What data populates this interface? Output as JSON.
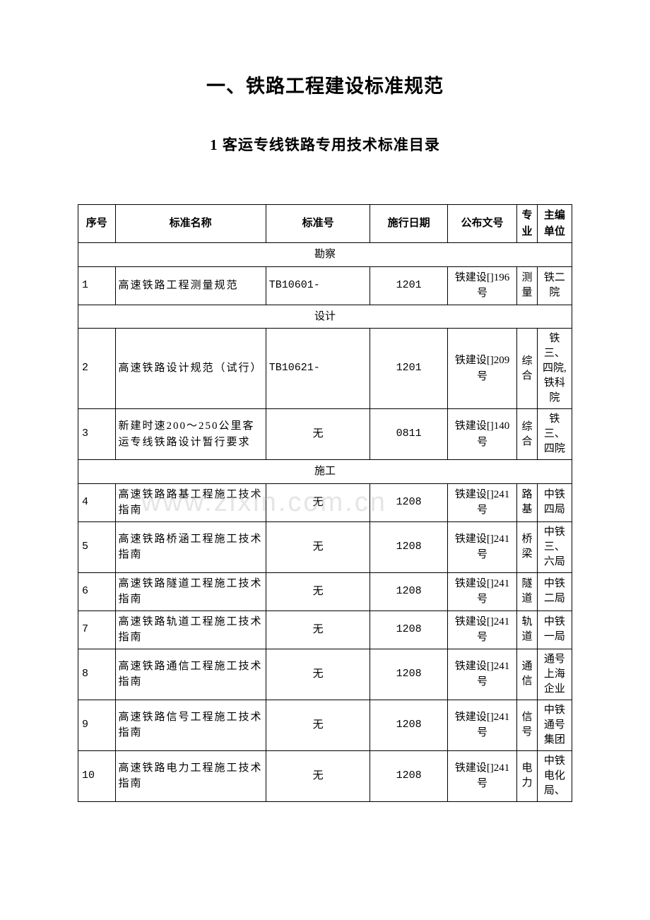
{
  "title": "一、铁路工程建设标准规范",
  "subtitle": "1 客运专线铁路专用技术标准目录",
  "watermark": "www.zixin.com.cn",
  "columns": {
    "seq": "序号",
    "name": "标准名称",
    "std": "标准号",
    "date": "施行日期",
    "doc": "公布文号",
    "spec": "专业",
    "unit": "主编单位"
  },
  "sections": [
    {
      "label": "勘察",
      "rows": [
        {
          "seq": "1",
          "name": "高速铁路工程测量规范",
          "std": "TB10601-",
          "date": "1201",
          "doc": "铁建设[]196号",
          "spec": "测量",
          "unit": "铁二院"
        }
      ]
    },
    {
      "label": "设计",
      "rows": [
        {
          "seq": "2",
          "name": "高速铁路设计规范（试行）",
          "std": "TB10621-",
          "date": "1201",
          "doc": "铁建设[]209号",
          "spec": "综合",
          "unit": "铁三、四院,铁科院"
        },
        {
          "seq": "3",
          "name": "新建时速200～250公里客运专线铁路设计暂行要求",
          "std": "无",
          "date": "0811",
          "doc": "铁建设[]140号",
          "spec": "综合",
          "unit": "铁三、四院"
        }
      ]
    },
    {
      "label": "施工",
      "rows": [
        {
          "seq": "4",
          "name": "高速铁路路基工程施工技术指南",
          "std": "无",
          "date": "1208",
          "doc": "铁建设[]241号",
          "spec": "路基",
          "unit": "中铁四局"
        },
        {
          "seq": "5",
          "name": "高速铁路桥涵工程施工技术指南",
          "std": "无",
          "date": "1208",
          "doc": "铁建设[]241号",
          "spec": "桥梁",
          "unit": "中铁三、六局"
        },
        {
          "seq": "6",
          "name": "高速铁路隧道工程施工技术指南",
          "std": "无",
          "date": "1208",
          "doc": "铁建设[]241号",
          "spec": "隧道",
          "unit": "中铁二局"
        },
        {
          "seq": "7",
          "name": "高速铁路轨道工程施工技术指南",
          "std": "无",
          "date": "1208",
          "doc": "铁建设[]241号",
          "spec": "轨道",
          "unit": "中铁一局"
        },
        {
          "seq": "8",
          "name": "高速铁路通信工程施工技术指南",
          "std": "无",
          "date": "1208",
          "doc": "铁建设[]241号",
          "spec": "通信",
          "unit": "通号上海企业"
        },
        {
          "seq": "9",
          "name": "高速铁路信号工程施工技术指南",
          "std": "无",
          "date": "1208",
          "doc": "铁建设[]241号",
          "spec": "信号",
          "unit": "中铁通号集团"
        },
        {
          "seq": "10",
          "name": "高速铁路电力工程施工技术指南",
          "std": "无",
          "date": "1208",
          "doc": "铁建设[]241号",
          "spec": "电力",
          "unit": "中铁电化局、"
        }
      ]
    }
  ]
}
